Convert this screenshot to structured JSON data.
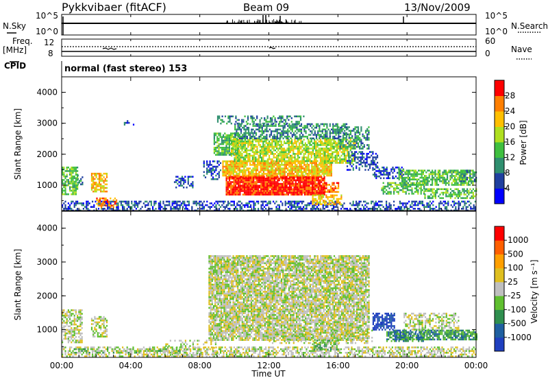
{
  "header": {
    "station": "Pykkvibaer (fitACF)",
    "beam": "Beam 09",
    "date": "13/Nov/2009"
  },
  "strip_labels": {
    "nsky": "N.Sky",
    "nsearch": "N.Search",
    "freq_line1": "Freq.",
    "freq_line2": "[MHz]",
    "nave": "Nave",
    "cpid": "CPID",
    "cpid_value": "normal (fast stereo) 153",
    "nsky_ticks": [
      "10^5",
      "10^0"
    ],
    "nsearch_ticks": [
      "10^5",
      "10^0"
    ],
    "freq_ticks": [
      "12",
      "8"
    ],
    "nave_ticks": [
      "60",
      "0"
    ]
  },
  "colors": {
    "power_scale": [
      "#0000ff",
      "#1f3f9f",
      "#2f8f6f",
      "#3fbf3f",
      "#afdf1f",
      "#ffbf00",
      "#ff7f00",
      "#ff0000"
    ],
    "velocity_scale": [
      "#1f3fbf",
      "#1f5fa0",
      "#2f8f4f",
      "#5fbf2f",
      "#bfbfbf",
      "#dfbf1f",
      "#ff9f00",
      "#ff5f00",
      "#ff0000"
    ]
  },
  "chart_data": [
    {
      "type": "heatmap",
      "name": "power",
      "xlabel": "",
      "ylabel": "Slant Range [km]",
      "ylim": [
        180,
        4500
      ],
      "xlim": [
        "00:00",
        "24:00"
      ],
      "y_ticks": [
        "1000",
        "2000",
        "3000",
        "4000"
      ],
      "colorbar_label": "Power [dB]",
      "colorbar_ticks": [
        "4",
        "8",
        "12",
        "16",
        "20",
        "24",
        "28"
      ],
      "regions": [
        {
          "t0": 0.0,
          "t1": 24.0,
          "r0": 200,
          "r1": 500,
          "level": 1,
          "density": 0.5
        },
        {
          "t0": 0.0,
          "t1": 0.9,
          "r0": 700,
          "r1": 1600,
          "level": 3,
          "density": 0.7
        },
        {
          "t0": 0.9,
          "t1": 1.2,
          "r0": 1000,
          "r1": 1400,
          "level": 2,
          "density": 0.5
        },
        {
          "t0": 1.7,
          "t1": 2.6,
          "r0": 800,
          "r1": 1400,
          "level": 5,
          "density": 0.7
        },
        {
          "t0": 2.0,
          "t1": 3.2,
          "r0": 300,
          "r1": 600,
          "level": 6,
          "density": 0.5
        },
        {
          "t0": 3.6,
          "t1": 4.2,
          "r0": 2950,
          "r1": 3100,
          "level": 1,
          "density": 0.4
        },
        {
          "t0": 6.5,
          "t1": 7.6,
          "r0": 900,
          "r1": 1300,
          "level": 1,
          "density": 0.5
        },
        {
          "t0": 8.2,
          "t1": 9.2,
          "r0": 1200,
          "r1": 1800,
          "level": 1,
          "density": 0.5
        },
        {
          "t0": 8.8,
          "t1": 10.2,
          "r0": 2000,
          "r1": 2700,
          "level": 3,
          "density": 0.75
        },
        {
          "t0": 9.5,
          "t1": 15.2,
          "r0": 700,
          "r1": 1300,
          "level": 7,
          "density": 0.95
        },
        {
          "t0": 9.3,
          "t1": 15.6,
          "r0": 1300,
          "r1": 1800,
          "level": 5,
          "density": 0.85
        },
        {
          "t0": 9.8,
          "t1": 15.8,
          "r0": 1800,
          "r1": 2500,
          "level": 4,
          "density": 0.75
        },
        {
          "t0": 10.0,
          "t1": 16.5,
          "r0": 2500,
          "r1": 3000,
          "level": 2,
          "density": 0.6
        },
        {
          "t0": 9.0,
          "t1": 14.0,
          "r0": 3000,
          "r1": 3250,
          "level": 2,
          "density": 0.4
        },
        {
          "t0": 15.2,
          "t1": 17.0,
          "r0": 1700,
          "r1": 2500,
          "level": 4,
          "density": 0.6
        },
        {
          "t0": 16.0,
          "t1": 17.8,
          "r0": 2200,
          "r1": 2900,
          "level": 2,
          "density": 0.55
        },
        {
          "t0": 14.5,
          "t1": 16.2,
          "r0": 400,
          "r1": 700,
          "level": 5,
          "density": 0.6
        },
        {
          "t0": 15.2,
          "t1": 16.0,
          "r0": 800,
          "r1": 1100,
          "level": 6,
          "density": 0.6
        },
        {
          "t0": 16.5,
          "t1": 18.3,
          "r0": 1500,
          "r1": 2100,
          "level": 1,
          "density": 0.45
        },
        {
          "t0": 18.0,
          "t1": 19.8,
          "r0": 1200,
          "r1": 1600,
          "level": 1,
          "density": 0.55
        },
        {
          "t0": 18.5,
          "t1": 21.0,
          "r0": 700,
          "r1": 1100,
          "level": 3,
          "density": 0.6
        },
        {
          "t0": 19.5,
          "t1": 23.8,
          "r0": 1000,
          "r1": 1500,
          "level": 3,
          "density": 0.7
        },
        {
          "t0": 21.0,
          "t1": 24.0,
          "r0": 600,
          "r1": 900,
          "level": 3,
          "density": 0.6
        },
        {
          "t0": 23.0,
          "t1": 24.0,
          "r0": 1100,
          "r1": 1500,
          "level": 2,
          "density": 0.6
        }
      ]
    },
    {
      "type": "heatmap",
      "name": "velocity",
      "xlabel": "Time UT",
      "ylabel": "Slant Range [km]",
      "ylim": [
        180,
        4500
      ],
      "xlim": [
        "00:00",
        "24:00"
      ],
      "x_ticks": [
        "00:00",
        "04:00",
        "08:00",
        "12:00",
        "16:00",
        "20:00",
        "00:00"
      ],
      "y_ticks": [
        "1000",
        "2000",
        "3000",
        "4000"
      ],
      "colorbar_label": "Velocity [m s⁻¹]",
      "colorbar_ticks": [
        "1000",
        "500",
        "100",
        "25",
        "-25",
        "-100",
        "-500",
        "-1000"
      ],
      "regions": [
        {
          "t0": 0.0,
          "t1": 24.0,
          "r0": 200,
          "r1": 500,
          "level": 4,
          "density": 0.55
        },
        {
          "t0": 0.0,
          "t1": 7.0,
          "r0": 300,
          "r1": 450,
          "level": 3,
          "density": 0.25
        },
        {
          "t0": 0.0,
          "t1": 1.2,
          "r0": 600,
          "r1": 1600,
          "level": 4,
          "density": 0.6
        },
        {
          "t0": 1.7,
          "t1": 2.6,
          "r0": 800,
          "r1": 1400,
          "level": 4,
          "density": 0.6
        },
        {
          "t0": 8.5,
          "t1": 17.8,
          "r0": 700,
          "r1": 3200,
          "level": 4,
          "density": 0.85
        },
        {
          "t0": 14.5,
          "t1": 16.0,
          "r0": 400,
          "r1": 700,
          "level": 3,
          "density": 0.6
        },
        {
          "t0": 18.0,
          "t1": 19.3,
          "r0": 1000,
          "r1": 1500,
          "level": 0,
          "density": 0.7
        },
        {
          "t0": 19.2,
          "t1": 20.2,
          "r0": 700,
          "r1": 1000,
          "level": 1,
          "density": 0.7
        },
        {
          "t0": 18.8,
          "t1": 21.0,
          "r0": 650,
          "r1": 950,
          "level": 2,
          "density": 0.6
        },
        {
          "t0": 20.5,
          "t1": 24.0,
          "r0": 700,
          "r1": 1000,
          "level": 2,
          "density": 0.75
        },
        {
          "t0": 19.8,
          "t1": 23.0,
          "r0": 1000,
          "r1": 1500,
          "level": 4,
          "density": 0.5
        },
        {
          "t0": 12.0,
          "t1": 18.0,
          "r0": 600,
          "r1": 1000,
          "level": 4,
          "density": 0.3
        },
        {
          "t0": 6.0,
          "t1": 9.0,
          "r0": 200,
          "r1": 700,
          "level": 4,
          "density": 0.3
        }
      ]
    }
  ]
}
